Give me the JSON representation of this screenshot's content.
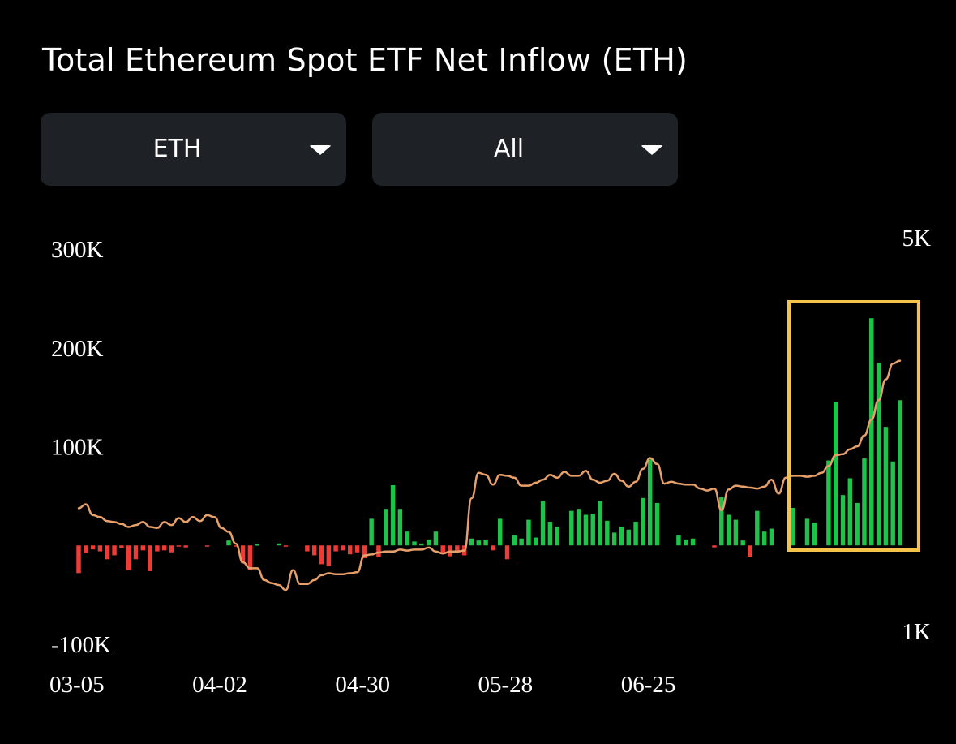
{
  "header": {
    "title": "Total Ethereum Spot ETF Net Inflow (ETH)"
  },
  "filters": {
    "asset": {
      "value": "ETH",
      "icon": "caret-down-icon"
    },
    "range": {
      "value": "All",
      "icon": "caret-down-icon"
    }
  },
  "colors": {
    "positive": "#1ec44a",
    "negative": "#ef3a36",
    "line": "#e8a06a",
    "highlight": "#f3c34a",
    "background": "#000000"
  },
  "chart_data": {
    "type": "bar",
    "title": "",
    "xlabel": "",
    "ylabel": "",
    "ylim": [
      -100000,
      300000
    ],
    "y2lim": [
      1000,
      5000
    ],
    "yticks": [
      "300K",
      "200K",
      "100K",
      "-100K"
    ],
    "y2ticks": [
      "5K",
      "1K"
    ],
    "xticks": [
      "03-05",
      "04-02",
      "04-30",
      "05-28",
      "06-25"
    ],
    "xtick_index": [
      0,
      20,
      40,
      60,
      80
    ],
    "grid": false,
    "legend": "none",
    "series": [
      {
        "type": "bar",
        "axis": "left",
        "values": [
          -28000,
          -8000,
          -4000,
          -6000,
          -14000,
          -10000,
          -3000,
          -25000,
          -14000,
          -5000,
          -26000,
          -6000,
          -5000,
          -7000,
          -1000,
          -2000,
          0,
          0,
          -1000,
          0,
          0,
          5000,
          -1000,
          -18000,
          -25000,
          1000,
          0,
          0,
          2000,
          -1000,
          0,
          0,
          -6000,
          -10000,
          -19000,
          -21000,
          -6000,
          -5000,
          -9000,
          -7000,
          -13000,
          27000,
          -12000,
          37000,
          61000,
          37000,
          14000,
          4000,
          2000,
          6000,
          14000,
          -8000,
          -11000,
          -8000,
          -10000,
          7000,
          5000,
          6000,
          -5000,
          27000,
          -14000,
          10000,
          7000,
          26000,
          8000,
          45000,
          24000,
          19000,
          0,
          35000,
          37000,
          31000,
          32000,
          45000,
          25000,
          13000,
          19000,
          16000,
          24000,
          48000,
          87000,
          43000,
          0,
          0,
          10000,
          6000,
          7000,
          0,
          0,
          -2000,
          49000,
          31000,
          26000,
          5000,
          -12000,
          35000,
          14000,
          17000,
          0,
          0,
          38000,
          0,
          27000,
          23000,
          0,
          86000,
          145000,
          51000,
          68000,
          43000,
          88000,
          230000,
          185000,
          120000,
          85000,
          147000
        ]
      },
      {
        "type": "line",
        "axis": "right",
        "values": [
          2250,
          2290,
          2180,
          2160,
          2120,
          2110,
          2090,
          2060,
          2080,
          2110,
          2060,
          2050,
          2110,
          2080,
          2150,
          2110,
          2160,
          2120,
          2180,
          2160,
          2050,
          2010,
          1890,
          1700,
          1640,
          1640,
          1520,
          1490,
          1470,
          1420,
          1620,
          1480,
          1480,
          1520,
          1570,
          1590,
          1580,
          1580,
          1590,
          1600,
          1770,
          1780,
          1800,
          1810,
          1810,
          1830,
          1820,
          1830,
          1830,
          1850,
          1810,
          1790,
          1810,
          1810,
          1820,
          2350,
          2610,
          2590,
          2490,
          2590,
          2580,
          2560,
          2480,
          2480,
          2510,
          2540,
          2590,
          2560,
          2620,
          2580,
          2580,
          2630,
          2540,
          2510,
          2530,
          2600,
          2530,
          2470,
          2520,
          2650,
          2760,
          2700,
          2500,
          2520,
          2500,
          2490,
          2490,
          2450,
          2430,
          2450,
          2230,
          2440,
          2480,
          2470,
          2460,
          2450,
          2470,
          2540,
          2400,
          2560,
          2580,
          2580,
          2570,
          2580,
          2610,
          2680,
          2790,
          2800,
          2850,
          2880,
          2990,
          3150,
          3350,
          3560,
          3720,
          3750
        ]
      }
    ],
    "highlight": {
      "from_index": 100,
      "to_index": 115
    }
  }
}
